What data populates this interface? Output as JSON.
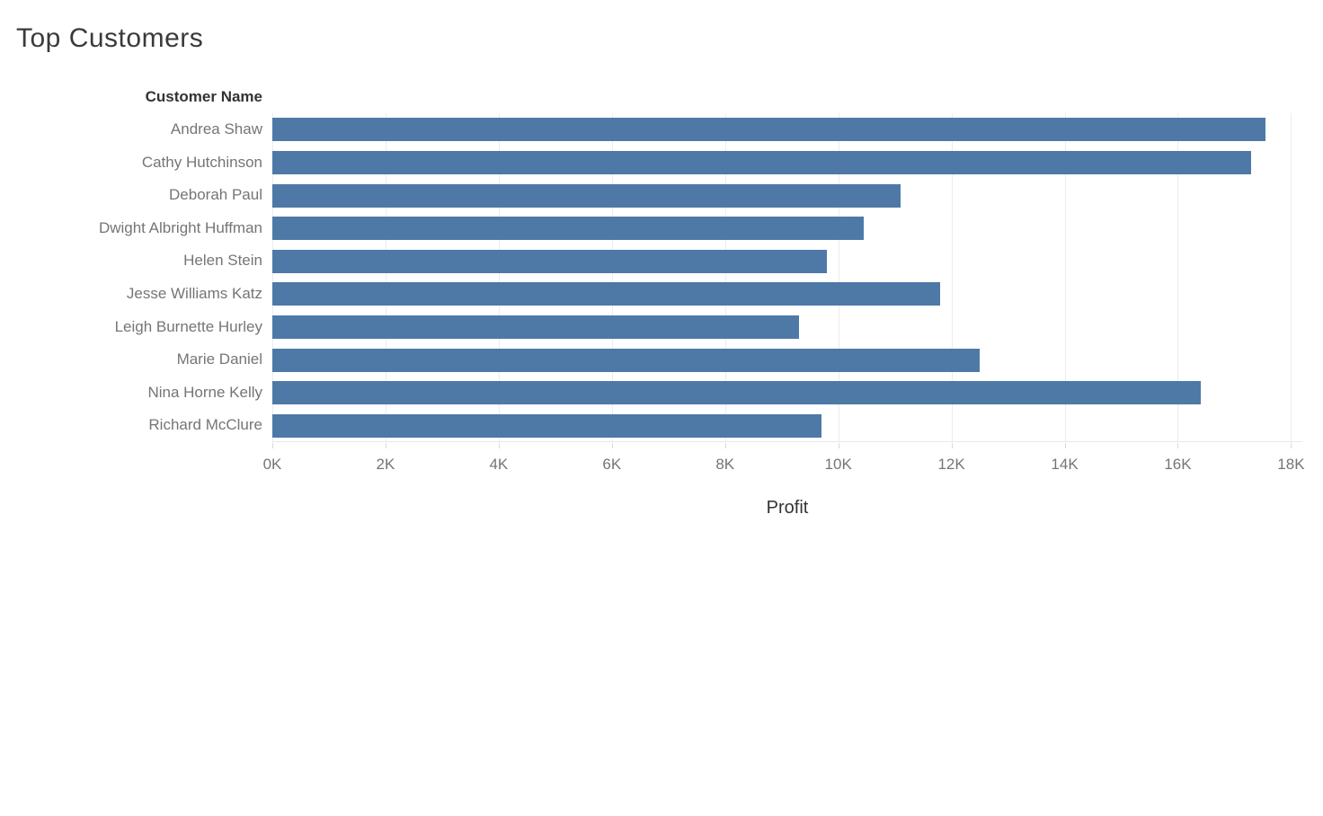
{
  "page": {
    "title": "Top Customers"
  },
  "chart_data": {
    "type": "bar",
    "orientation": "horizontal",
    "title": "Top Customers",
    "category_axis_label": "Customer Name",
    "value_axis_label": "Profit",
    "categories": [
      "Andrea Shaw",
      "Cathy Hutchinson",
      "Deborah Paul",
      "Dwight Albright Huffman",
      "Helen Stein",
      "Jesse Williams Katz",
      "Leigh Burnette Hurley",
      "Marie Daniel",
      "Nina Horne Kelly",
      "Richard McClure"
    ],
    "values": [
      17550,
      17300,
      11100,
      10450,
      9800,
      11800,
      9300,
      12500,
      16400,
      9700
    ],
    "xlim": [
      0,
      18200
    ],
    "x_tick_values": [
      0,
      2000,
      4000,
      6000,
      8000,
      10000,
      12000,
      14000,
      16000,
      18000
    ],
    "x_tick_labels": [
      "0K",
      "2K",
      "4K",
      "6K",
      "8K",
      "10K",
      "12K",
      "14K",
      "16K",
      "18K"
    ],
    "grid": true,
    "legend": "none",
    "bar_color": "#4e79a7"
  },
  "colors": {
    "bar": "#4e79a7",
    "gridline": "#ececec",
    "axis_line": "#e9e9e9",
    "tick_mark": "#d8d8d8",
    "muted_text": "#757575",
    "dark_text": "#333333",
    "background": "#ffffff"
  }
}
